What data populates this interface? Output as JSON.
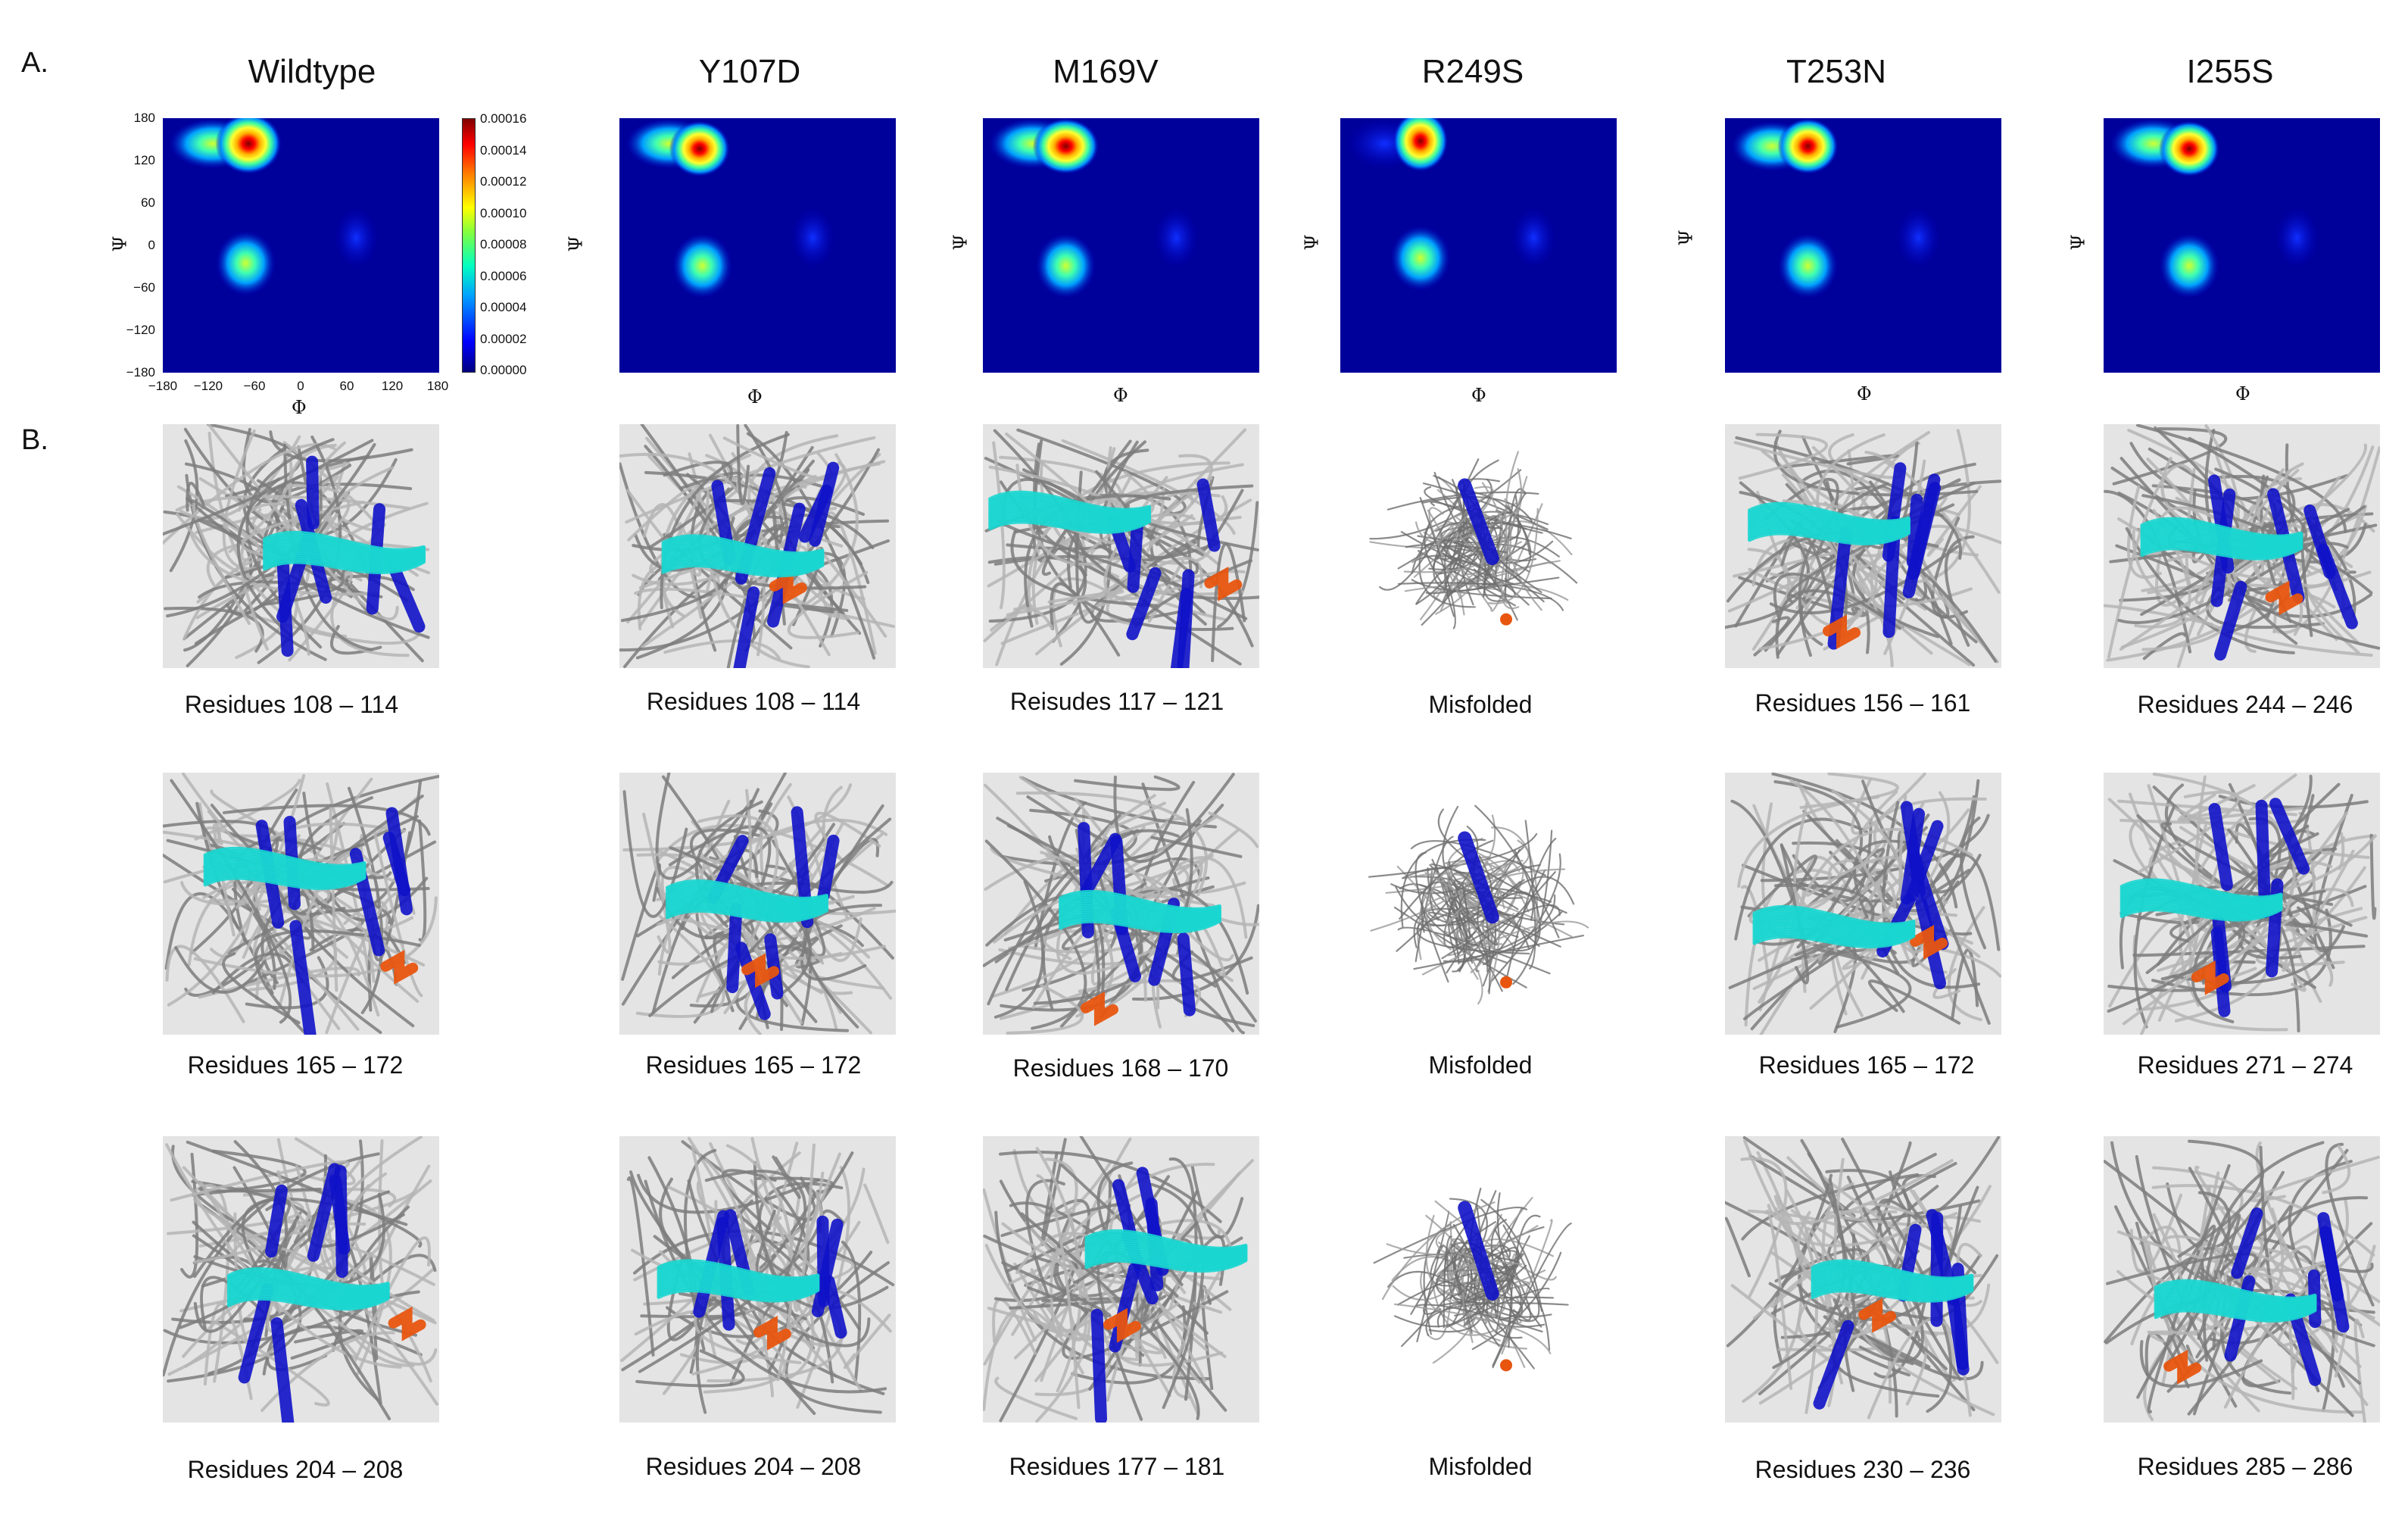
{
  "panel_labels": {
    "a": "A.",
    "b": "B."
  },
  "columns": [
    {
      "title": "Wildtype",
      "captions": [
        "Residues 108 – 114",
        "Residues 165 – 172",
        "Residues 204 – 208"
      ]
    },
    {
      "title": "Y107D",
      "captions": [
        "Residues 108 – 114",
        "Residues 165 – 172",
        "Residues 204 – 208"
      ]
    },
    {
      "title": "M169V",
      "captions": [
        "Reisudes 117 – 121",
        "Residues 168 – 170",
        "Residues 177 – 181"
      ]
    },
    {
      "title": "R249S",
      "captions": [
        "Misfolded",
        "Misfolded",
        "Misfolded"
      ]
    },
    {
      "title": "T253N",
      "captions": [
        "Residues 156 – 161",
        "Residues 165 – 172",
        "Residues 230 – 236"
      ]
    },
    {
      "title": "I255S",
      "captions": [
        "Residues 244 – 246",
        "Residues 271 – 274",
        "Residues 285 – 286"
      ]
    }
  ],
  "ramachandran": {
    "x_label": "Φ",
    "y_label": "Ψ",
    "ticks": [
      "180",
      "120",
      "60",
      "0",
      "−60",
      "−120",
      "−180"
    ],
    "x_ticks": [
      "−180",
      "−120",
      "−60",
      "0",
      "60",
      "120",
      "180"
    ],
    "colorbar_ticks": [
      "0.00016",
      "0.00014",
      "0.00012",
      "0.00010",
      "0.00008",
      "0.00006",
      "0.00004",
      "0.00002",
      "0.00000"
    ],
    "colormap": [
      "#00007f",
      "#0000ff",
      "#00a0ff",
      "#00ffc0",
      "#80ff40",
      "#ffff00",
      "#ff8000",
      "#ff0000",
      "#800000"
    ]
  },
  "structure_colors": {
    "backbone": "#8a8a8a",
    "strand": "#0f12c8",
    "highlight": "#19d6d0",
    "helix": "#e8550f"
  }
}
